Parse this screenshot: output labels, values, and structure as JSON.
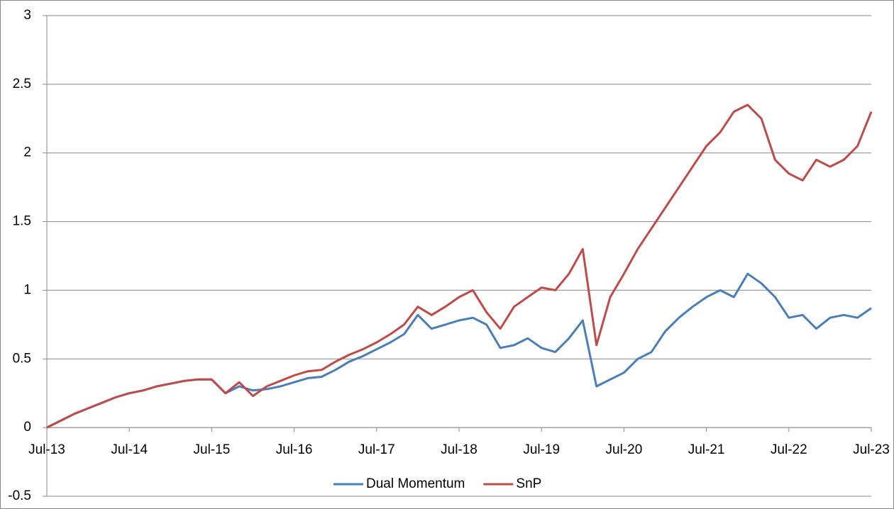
{
  "chart_data": {
    "type": "line",
    "x": [
      "2013-07",
      "2013-09",
      "2013-11",
      "2014-01",
      "2014-03",
      "2014-05",
      "2014-07",
      "2014-09",
      "2014-11",
      "2015-01",
      "2015-03",
      "2015-05",
      "2015-07",
      "2015-09",
      "2015-11",
      "2016-01",
      "2016-03",
      "2016-05",
      "2016-07",
      "2016-09",
      "2016-11",
      "2017-01",
      "2017-03",
      "2017-05",
      "2017-07",
      "2017-09",
      "2017-11",
      "2018-01",
      "2018-03",
      "2018-05",
      "2018-07",
      "2018-09",
      "2018-11",
      "2019-01",
      "2019-03",
      "2019-05",
      "2019-07",
      "2019-09",
      "2019-11",
      "2020-01",
      "2020-03",
      "2020-05",
      "2020-07",
      "2020-09",
      "2020-11",
      "2021-01",
      "2021-03",
      "2021-05",
      "2021-07",
      "2021-09",
      "2021-11",
      "2022-01",
      "2022-03",
      "2022-05",
      "2022-07",
      "2022-09",
      "2022-11",
      "2023-01",
      "2023-03",
      "2023-05",
      "2023-07"
    ],
    "series": [
      {
        "name": "Dual Momentum",
        "color": "#4a7ebb",
        "values": [
          0.0,
          0.05,
          0.1,
          0.14,
          0.18,
          0.22,
          0.25,
          0.27,
          0.3,
          0.32,
          0.34,
          0.35,
          0.35,
          0.25,
          0.3,
          0.27,
          0.28,
          0.3,
          0.33,
          0.36,
          0.37,
          0.42,
          0.48,
          0.52,
          0.57,
          0.62,
          0.68,
          0.82,
          0.72,
          0.75,
          0.78,
          0.8,
          0.75,
          0.58,
          0.6,
          0.65,
          0.58,
          0.55,
          0.65,
          0.78,
          0.3,
          0.35,
          0.4,
          0.5,
          0.55,
          0.7,
          0.8,
          0.88,
          0.95,
          1.0,
          0.95,
          1.12,
          1.05,
          0.95,
          0.8,
          0.82,
          0.72,
          0.8,
          0.82,
          0.8,
          0.87
        ]
      },
      {
        "name": "SnP",
        "color": "#be4b48",
        "values": [
          0.0,
          0.05,
          0.1,
          0.14,
          0.18,
          0.22,
          0.25,
          0.27,
          0.3,
          0.32,
          0.34,
          0.35,
          0.35,
          0.25,
          0.33,
          0.23,
          0.3,
          0.34,
          0.38,
          0.41,
          0.42,
          0.48,
          0.53,
          0.57,
          0.62,
          0.68,
          0.75,
          0.88,
          0.82,
          0.88,
          0.95,
          1.0,
          0.84,
          0.72,
          0.88,
          0.95,
          1.02,
          1.0,
          1.12,
          1.3,
          0.6,
          0.95,
          1.12,
          1.3,
          1.45,
          1.6,
          1.75,
          1.9,
          2.05,
          2.15,
          2.3,
          2.35,
          2.25,
          1.95,
          1.85,
          1.8,
          1.95,
          1.9,
          1.95,
          2.05,
          2.3
        ]
      }
    ],
    "ylim": [
      -0.5,
      3
    ],
    "yticks": [
      -0.5,
      0,
      0.5,
      1,
      1.5,
      2,
      2.5,
      3
    ],
    "xlim": [
      "2013-07",
      "2023-07"
    ],
    "xticks": [
      {
        "value": "2013-07",
        "label": "Jul-13"
      },
      {
        "value": "2014-07",
        "label": "Jul-14"
      },
      {
        "value": "2015-07",
        "label": "Jul-15"
      },
      {
        "value": "2016-07",
        "label": "Jul-16"
      },
      {
        "value": "2017-07",
        "label": "Jul-17"
      },
      {
        "value": "2018-07",
        "label": "Jul-18"
      },
      {
        "value": "2019-07",
        "label": "Jul-19"
      },
      {
        "value": "2020-07",
        "label": "Jul-20"
      },
      {
        "value": "2021-07",
        "label": "Jul-21"
      },
      {
        "value": "2022-07",
        "label": "Jul-22"
      },
      {
        "value": "2023-07",
        "label": "Jul-23"
      }
    ],
    "grid": true,
    "legend": "bottom"
  }
}
